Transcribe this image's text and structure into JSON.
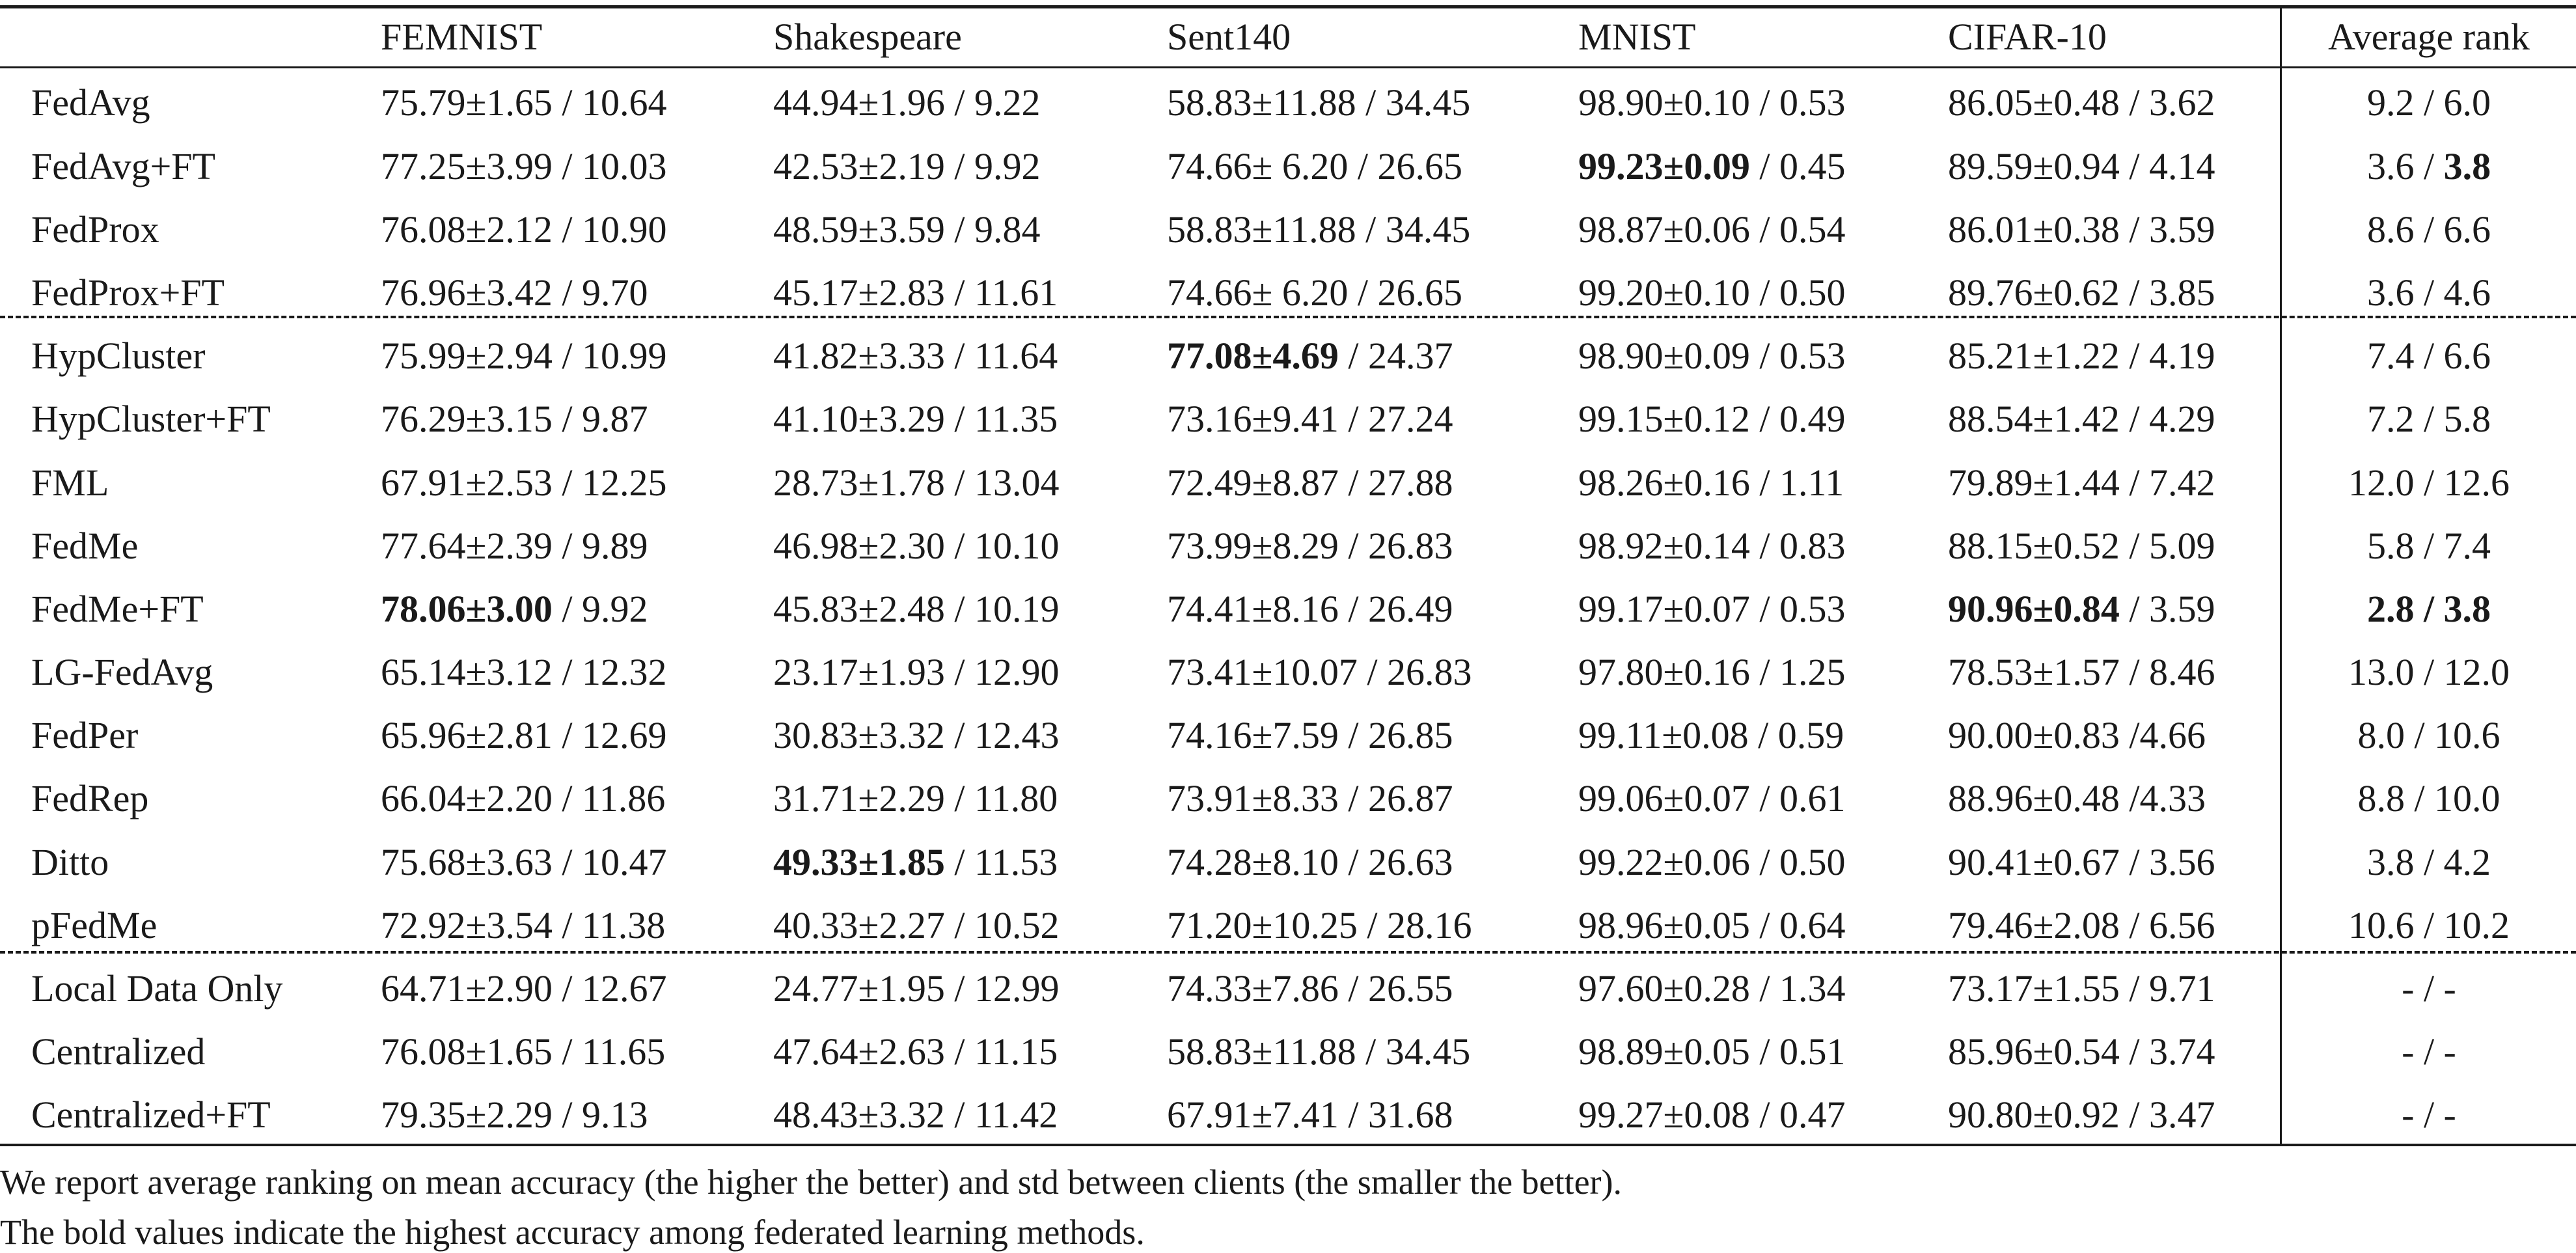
{
  "table": {
    "headers": [
      "",
      "FEMNIST",
      "Shakespeare",
      "Sent140",
      "MNIST",
      "CIFAR-10",
      "Average rank"
    ],
    "rows": [
      {
        "method": "FedAvg",
        "cells": [
          "75.79±1.65 / 10.64",
          "44.94±1.96 / 9.22",
          "58.83±11.88 / 34.45",
          "98.90±0.10 / 0.53",
          "86.05±0.48 / 3.62",
          "9.2 / 6.0"
        ]
      },
      {
        "method": "FedAvg+FT",
        "cells": [
          "77.25±3.99 / 10.03",
          "42.53±2.19 / 9.92",
          "74.66± 6.20 / 26.65",
          "99.23±0.09 / 0.45",
          "89.59±0.94 / 4.14",
          "3.6 / 3.8"
        ]
      },
      {
        "method": "FedProx",
        "cells": [
          "76.08±2.12 / 10.90",
          "48.59±3.59 / 9.84",
          "58.83±11.88 / 34.45",
          "98.87±0.06 / 0.54",
          "86.01±0.38 / 3.59",
          "8.6 / 6.6"
        ]
      },
      {
        "method": "FedProx+FT",
        "cells": [
          "76.96±3.42 / 9.70",
          "45.17±2.83 / 11.61",
          "74.66± 6.20 / 26.65",
          "99.20±0.10 / 0.50",
          "89.76±0.62 / 3.85",
          "3.6 / 4.6"
        ]
      },
      {
        "method": "HypCluster",
        "cells": [
          "75.99±2.94 / 10.99",
          "41.82±3.33 / 11.64",
          "77.08±4.69 / 24.37",
          "98.90±0.09 / 0.53",
          "85.21±1.22 / 4.19",
          "7.4 / 6.6"
        ]
      },
      {
        "method": "HypCluster+FT",
        "cells": [
          "76.29±3.15 / 9.87",
          "41.10±3.29 / 11.35",
          "73.16±9.41 / 27.24",
          "99.15±0.12 / 0.49",
          "88.54±1.42 / 4.29",
          "7.2 / 5.8"
        ]
      },
      {
        "method": "FML",
        "cells": [
          "67.91±2.53 / 12.25",
          "28.73±1.78 / 13.04",
          "72.49±8.87 / 27.88",
          "98.26±0.16 / 1.11",
          "79.89±1.44 / 7.42",
          "12.0 / 12.6"
        ]
      },
      {
        "method": "FedMe",
        "cells": [
          "77.64±2.39 / 9.89",
          "46.98±2.30 / 10.10",
          "73.99±8.29 / 26.83",
          "98.92±0.14 / 0.83",
          "88.15±0.52 / 5.09",
          "5.8 / 7.4"
        ]
      },
      {
        "method": "FedMe+FT",
        "cells": [
          "78.06±3.00 / 9.92",
          "45.83±2.48 / 10.19",
          "74.41±8.16 / 26.49",
          "99.17±0.07 / 0.53",
          "90.96±0.84 / 3.59",
          "2.8 / 3.8"
        ]
      },
      {
        "method": "LG-FedAvg",
        "cells": [
          "65.14±3.12 / 12.32",
          "23.17±1.93 / 12.90",
          "73.41±10.07 / 26.83",
          "97.80±0.16 / 1.25",
          "78.53±1.57 / 8.46",
          "13.0 / 12.0"
        ]
      },
      {
        "method": "FedPer",
        "cells": [
          "65.96±2.81 / 12.69",
          "30.83±3.32 / 12.43",
          "74.16±7.59 / 26.85",
          "99.11±0.08 / 0.59",
          "90.00±0.83 /4.66",
          "8.0 / 10.6"
        ]
      },
      {
        "method": "FedRep",
        "cells": [
          "66.04±2.20 / 11.86",
          "31.71±2.29 / 11.80",
          "73.91±8.33 / 26.87",
          "99.06±0.07 / 0.61",
          "88.96±0.48 /4.33",
          "8.8 / 10.0"
        ]
      },
      {
        "method": "Ditto",
        "cells": [
          "75.68±3.63 / 10.47",
          "49.33±1.85 / 11.53",
          "74.28±8.10 / 26.63",
          "99.22±0.06 / 0.50",
          "90.41±0.67 / 3.56",
          "3.8 / 4.2"
        ]
      },
      {
        "method": "pFedMe",
        "cells": [
          "72.92±3.54 / 11.38",
          "40.33±2.27 / 10.52",
          "71.20±10.25 / 28.16",
          "98.96±0.05 / 0.64",
          "79.46±2.08 / 6.56",
          "10.6 / 10.2"
        ]
      },
      {
        "method": "Local Data Only",
        "cells": [
          "64.71±2.90 / 12.67",
          "24.77±1.95 / 12.99",
          "74.33±7.86 / 26.55",
          "97.60±0.28 / 1.34",
          "73.17±1.55 / 9.71",
          "- / -"
        ]
      },
      {
        "method": "Centralized",
        "cells": [
          "76.08±1.65 / 11.65",
          "47.64±2.63 / 11.15",
          "58.83±11.88 / 34.45",
          "98.89±0.05 / 0.51",
          "85.96±0.54 / 3.74",
          "- / -"
        ]
      },
      {
        "method": "Centralized+FT",
        "cells": [
          "79.35±2.29 / 9.13",
          "48.43±3.32 / 11.42",
          "67.91±7.41 / 31.68",
          "99.27±0.08 / 0.47",
          "90.80±0.92 / 3.47",
          "- / -"
        ]
      }
    ],
    "bold": {
      "FedAvg+FT": {
        "4": "99.23±0.09",
        "6": "3.8"
      },
      "HypCluster": {
        "3": "77.08±4.69"
      },
      "FedMe+FT": {
        "1": "78.06±3.00",
        "5": "90.96±0.84",
        "6": "2.8 / 3.8"
      },
      "Ditto": {
        "2": "49.33±1.85"
      }
    }
  },
  "notes": [
    "We report average ranking on mean accuracy (the higher the better) and std between clients (the smaller the better).",
    "The bold values indicate the highest accuracy among federated learning methods."
  ]
}
